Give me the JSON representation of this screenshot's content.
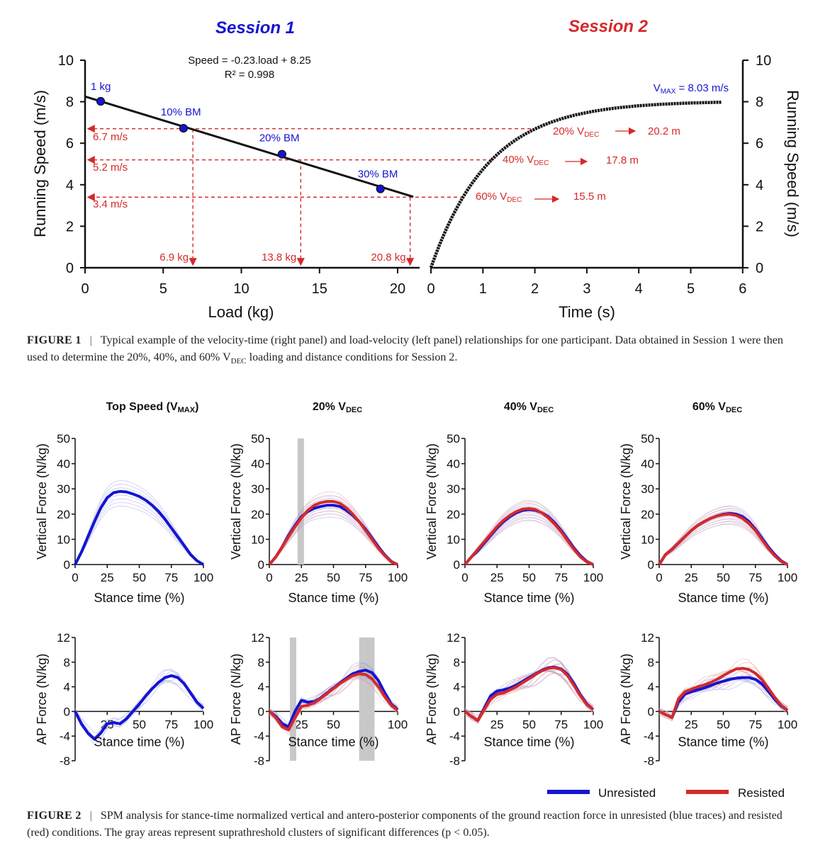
{
  "figure1": {
    "session1_title": "Session 1",
    "session2_title": "Session 2",
    "session1_color": "#1414d2",
    "session2_color": "#d32a2a",
    "equation": "Speed = -0.23.load + 8.25",
    "r2": "R² = 0.998",
    "vmax_pre": "V",
    "vmax_sub": "MAX",
    "vmax_post": " = 8.03 m/s",
    "left_ylabel": "Running Speed (m/s)",
    "right_ylabel": "Running Speed (m/s)",
    "left_xlabel": "Load (kg)",
    "right_xlabel": "Time (s)",
    "speed_labels": [
      "6.7 m/s",
      "5.2 m/s",
      "3.4 m/s"
    ],
    "load_labels": [
      "6.9 kg",
      "13.8 kg",
      "20.8 kg"
    ],
    "vdec_pre": [
      "20% V",
      "40% V",
      "60% V"
    ],
    "vdec_sub": "DEC",
    "distance_labels": [
      "20.2 m",
      "17.8 m",
      "15.5 m"
    ],
    "caption_label": "FIGURE 1",
    "caption_text": "Typical example of the velocity-time (right panel) and load-velocity (left panel) relationships for one participant. Data obtained in Session 1 were then used to determine the 20%, 40%, and 60% V",
    "caption_sub": "DEC",
    "caption_tail": " loading and distance conditions for Session 2."
  },
  "figure2": {
    "panel_titles": [
      {
        "pre": "Top Speed (V",
        "sub": "MAX",
        "post": ")"
      },
      {
        "pre": "20% V",
        "sub": "DEC",
        "post": ""
      },
      {
        "pre": "40% V",
        "sub": "DEC",
        "post": ""
      },
      {
        "pre": "60% V",
        "sub": "DEC",
        "post": ""
      }
    ],
    "vertical_ylabel": "Vertical Force (N/kg)",
    "ap_ylabel": "AP Force (N/kg)",
    "xlabel": "Stance time (%)",
    "legend": [
      {
        "name": "Unresisted",
        "color": "#1414d2"
      },
      {
        "name": "Resisted",
        "color": "#d32a2a"
      }
    ],
    "caption_label": "FIGURE 2",
    "caption_text": "SPM analysis for stance-time normalized vertical and antero-posterior components of the ground reaction force in unresisted (blue traces) and resisted (red) conditions. The gray areas represent suprathreshold clusters of significant differences (p < 0.05)."
  },
  "chart_data": [
    {
      "type": "scatter",
      "title": "Session 1",
      "xlabel": "Load (kg)",
      "ylabel": "Running Speed (m/s)",
      "xlim": [
        0,
        22
      ],
      "ylim": [
        0,
        10
      ],
      "xticks": [
        0,
        5,
        10,
        15,
        20
      ],
      "yticks": [
        0,
        2,
        4,
        6,
        8,
        10
      ],
      "points": [
        {
          "label": "1 kg",
          "x": 1,
          "y": 8.02
        },
        {
          "label": "10% BM",
          "x": 6.3,
          "y": 6.72
        },
        {
          "label": "20% BM",
          "x": 12.6,
          "y": 5.47
        },
        {
          "label": "30% BM",
          "x": 18.9,
          "y": 3.8
        }
      ],
      "fit_line": {
        "slope": -0.23,
        "intercept": 8.25,
        "x": [
          0,
          21
        ]
      },
      "references": [
        {
          "speed": 6.7,
          "load": 6.9
        },
        {
          "speed": 5.2,
          "load": 13.8
        },
        {
          "speed": 3.4,
          "load": 20.8
        }
      ]
    },
    {
      "type": "line",
      "title": "Session 2",
      "xlabel": "Time (s)",
      "ylabel": "Running Speed (m/s)",
      "xlim": [
        0,
        6
      ],
      "ylim": [
        0,
        10
      ],
      "xticks": [
        0,
        1,
        2,
        3,
        4,
        5,
        6
      ],
      "yticks": [
        0,
        2,
        4,
        6,
        8,
        10
      ],
      "vmax": 8.03,
      "tau": 1.12,
      "t_end": 5.6,
      "conditions": [
        {
          "label": "20% VDEC",
          "speed": 6.7,
          "distance": "20.2 m"
        },
        {
          "label": "40% VDEC",
          "speed": 5.2,
          "distance": "17.8 m"
        },
        {
          "label": "60% VDEC",
          "speed": 3.4,
          "distance": "15.5 m"
        }
      ]
    },
    {
      "type": "line",
      "title": "Vertical Force",
      "ylabel": "Vertical Force (N/kg)",
      "xlabel": "Stance time (%)",
      "xlim": [
        0,
        100
      ],
      "ylim": [
        0,
        50
      ],
      "xticks": [
        0,
        25,
        50,
        75,
        100
      ],
      "yticks": [
        0,
        10,
        20,
        30,
        40,
        50
      ],
      "x": [
        0,
        5,
        10,
        15,
        20,
        25,
        30,
        35,
        40,
        45,
        50,
        55,
        60,
        65,
        70,
        75,
        80,
        85,
        90,
        95,
        100
      ],
      "panels": [
        {
          "title": "Top Speed (VMAX)",
          "series": [
            {
              "name": "Unresisted",
              "values": [
                0,
                5,
                11,
                17,
                22.5,
                26.5,
                28.5,
                29,
                28.8,
                28,
                27,
                25.5,
                23.5,
                21,
                18,
                14.5,
                11,
                7.5,
                4,
                1.5,
                0
              ]
            }
          ],
          "clusters": []
        },
        {
          "title": "20% VDEC",
          "series": [
            {
              "name": "Unresisted",
              "values": [
                0,
                3,
                7,
                11.5,
                15.5,
                19,
                21,
                22.3,
                23,
                23.5,
                23.5,
                23,
                21.5,
                19.5,
                17,
                14,
                10.5,
                7,
                3.8,
                1.2,
                0
              ]
            },
            {
              "name": "Resisted",
              "values": [
                0,
                3,
                7,
                11,
                15,
                18.5,
                21.5,
                23.5,
                24.5,
                25,
                25,
                24.3,
                22.5,
                20,
                17,
                13.5,
                10,
                6.5,
                3.5,
                1,
                0
              ]
            }
          ],
          "clusters": [
            [
              22,
              27
            ]
          ]
        },
        {
          "title": "40% VDEC",
          "series": [
            {
              "name": "Unresisted",
              "values": [
                0,
                3,
                5.5,
                8.5,
                11.5,
                14.5,
                17,
                19,
                20.5,
                21.5,
                21.8,
                21.5,
                20.5,
                19,
                16.5,
                13.5,
                10,
                6.5,
                3.5,
                1.2,
                0
              ]
            },
            {
              "name": "Resisted",
              "values": [
                0,
                3,
                6,
                9,
                12,
                15,
                17.5,
                19.5,
                21,
                22,
                22.2,
                21.8,
                20.5,
                18.5,
                16,
                13,
                9.5,
                6,
                3,
                1,
                0
              ]
            }
          ],
          "clusters": []
        },
        {
          "title": "60% VDEC",
          "series": [
            {
              "name": "Unresisted",
              "values": [
                0,
                4,
                6,
                8.5,
                11,
                13.5,
                15.5,
                17,
                18.3,
                19.3,
                20,
                20.3,
                20,
                19,
                17,
                14,
                10.5,
                7,
                4,
                1.5,
                0
              ]
            },
            {
              "name": "Resisted",
              "values": [
                0,
                4,
                6,
                8.5,
                11,
                13.5,
                15.5,
                17,
                18.3,
                19.2,
                19.8,
                20,
                19.5,
                18.3,
                16.3,
                13.5,
                10,
                6.5,
                3.5,
                1.2,
                0
              ]
            }
          ],
          "clusters": []
        }
      ]
    },
    {
      "type": "line",
      "title": "AP Force",
      "ylabel": "AP Force (N/kg)",
      "xlabel": "Stance time (%)",
      "xlim": [
        0,
        100
      ],
      "ylim": [
        -8,
        12
      ],
      "xticks": [
        25,
        50,
        75,
        100
      ],
      "yticks": [
        -8,
        -4,
        0,
        4,
        8,
        12
      ],
      "x": [
        0,
        5,
        10,
        15,
        20,
        25,
        30,
        35,
        40,
        45,
        50,
        55,
        60,
        65,
        70,
        75,
        80,
        85,
        90,
        95,
        100
      ],
      "panels": [
        {
          "title": "Top Speed (VMAX)",
          "series": [
            {
              "name": "Unresisted",
              "values": [
                0,
                -2,
                -3.5,
                -4.5,
                -3.5,
                -2,
                -1.8,
                -2,
                -1.2,
                0,
                1.2,
                2.5,
                3.7,
                4.7,
                5.5,
                5.8,
                5.5,
                4.5,
                3,
                1.5,
                0.5
              ]
            }
          ],
          "clusters": []
        },
        {
          "title": "20% VDEC",
          "series": [
            {
              "name": "Unresisted",
              "values": [
                0,
                -0.8,
                -2,
                -2.5,
                0,
                1.8,
                1.5,
                1.6,
                2.2,
                3,
                3.8,
                4.6,
                5.4,
                6.1,
                6.5,
                6.7,
                6.3,
                5,
                3,
                1.2,
                0.3
              ]
            },
            {
              "name": "Resisted",
              "values": [
                0,
                -1,
                -2.5,
                -3,
                -1,
                0.8,
                1,
                1.4,
                2.1,
                2.9,
                3.7,
                4.5,
                5.2,
                5.8,
                6.1,
                6,
                5.3,
                4,
                2.4,
                1,
                0.2
              ]
            }
          ],
          "clusters": [
            [
              16,
              21
            ],
            [
              70,
              82
            ]
          ]
        },
        {
          "title": "40% VDEC",
          "series": [
            {
              "name": "Unresisted",
              "values": [
                0,
                -0.8,
                -1.5,
                0.5,
                2.5,
                3.3,
                3.5,
                3.8,
                4.3,
                4.9,
                5.5,
                6.1,
                6.7,
                7.1,
                7.2,
                6.9,
                6,
                4.5,
                2.7,
                1.2,
                0.3
              ]
            },
            {
              "name": "Resisted",
              "values": [
                0,
                -0.8,
                -1.5,
                0.3,
                2,
                2.8,
                3,
                3.5,
                4,
                4.7,
                5.3,
                6,
                6.6,
                7,
                7.1,
                6.8,
                5.8,
                4.2,
                2.5,
                1.1,
                0.3
              ]
            }
          ],
          "clusters": []
        },
        {
          "title": "60% VDEC",
          "series": [
            {
              "name": "Unresisted",
              "values": [
                0,
                -0.5,
                -1,
                1.5,
                2.8,
                3.2,
                3.5,
                3.8,
                4.2,
                4.6,
                4.9,
                5.2,
                5.4,
                5.5,
                5.5,
                5.2,
                4.5,
                3.3,
                2,
                0.9,
                0.2
              ]
            },
            {
              "name": "Resisted",
              "values": [
                0,
                -0.5,
                -1,
                2,
                3.2,
                3.6,
                4,
                4.3,
                4.7,
                5.2,
                5.8,
                6.4,
                6.9,
                7,
                6.8,
                6.2,
                5.2,
                3.8,
                2.3,
                1,
                0.2
              ]
            }
          ],
          "clusters": []
        }
      ]
    }
  ]
}
